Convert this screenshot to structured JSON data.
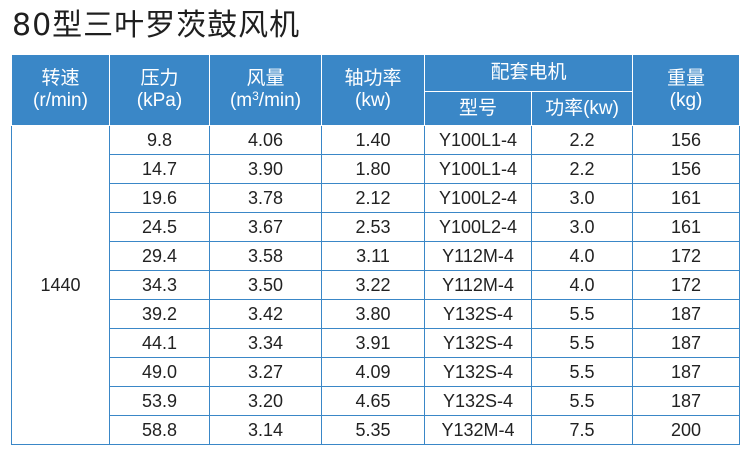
{
  "title": "80型三叶罗茨鼓风机",
  "header": {
    "speed": {
      "label": "转速",
      "unit": "(r/min)"
    },
    "pressure": {
      "label": "压力",
      "unit": "(kPa)"
    },
    "flow": {
      "label": "风量",
      "unit_pre": "(m",
      "unit_sup": "3",
      "unit_post": "/min)"
    },
    "shaft_power": {
      "label": "轴功率",
      "unit": "(kw)"
    },
    "motor": {
      "label": "配套电机",
      "model": "型号",
      "power": "功率(kw)"
    },
    "weight": {
      "label": "重量",
      "unit": "(kg)"
    }
  },
  "speed_value": "1440",
  "rows": [
    {
      "pressure": "9.8",
      "flow": "4.06",
      "shaft": "1.40",
      "model": "Y100L1-4",
      "power": "2.2",
      "weight": "156"
    },
    {
      "pressure": "14.7",
      "flow": "3.90",
      "shaft": "1.80",
      "model": "Y100L1-4",
      "power": "2.2",
      "weight": "156"
    },
    {
      "pressure": "19.6",
      "flow": "3.78",
      "shaft": "2.12",
      "model": "Y100L2-4",
      "power": "3.0",
      "weight": "161"
    },
    {
      "pressure": "24.5",
      "flow": "3.67",
      "shaft": "2.53",
      "model": "Y100L2-4",
      "power": "3.0",
      "weight": "161"
    },
    {
      "pressure": "29.4",
      "flow": "3.58",
      "shaft": "3.11",
      "model": "Y112M-4",
      "power": "4.0",
      "weight": "172"
    },
    {
      "pressure": "34.3",
      "flow": "3.50",
      "shaft": "3.22",
      "model": "Y112M-4",
      "power": "4.0",
      "weight": "172"
    },
    {
      "pressure": "39.2",
      "flow": "3.42",
      "shaft": "3.80",
      "model": "Y132S-4",
      "power": "5.5",
      "weight": "187"
    },
    {
      "pressure": "44.1",
      "flow": "3.34",
      "shaft": "3.91",
      "model": "Y132S-4",
      "power": "5.5",
      "weight": "187"
    },
    {
      "pressure": "49.0",
      "flow": "3.27",
      "shaft": "4.09",
      "model": "Y132S-4",
      "power": "5.5",
      "weight": "187"
    },
    {
      "pressure": "53.9",
      "flow": "3.20",
      "shaft": "4.65",
      "model": "Y132S-4",
      "power": "5.5",
      "weight": "187"
    },
    {
      "pressure": "58.8",
      "flow": "3.14",
      "shaft": "5.35",
      "model": "Y132M-4",
      "power": "7.5",
      "weight": "200"
    }
  ],
  "colors": {
    "header_bg": "#3a87c7",
    "border": "#3a87c7",
    "header_text": "#ffffff"
  }
}
